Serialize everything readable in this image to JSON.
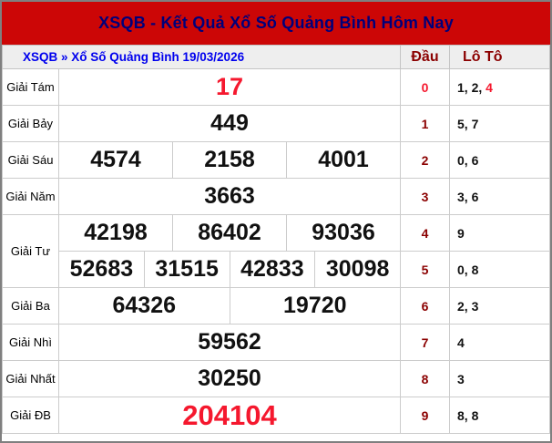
{
  "header": {
    "title": "XSQB - Kết Quả Xổ Số Quảng Bình Hôm Nay"
  },
  "subheader": {
    "breadcrumb": "XSQB » Xổ Số Quảng Bình 19/03/2026",
    "dau_header": "Đầu",
    "loto_header": "Lô Tô"
  },
  "colors": {
    "header_bar": "#cc0606",
    "title_text": "#00007a",
    "link_blue": "#0000EE",
    "dark_red": "#8B0000",
    "highlight_red": "#f5182e",
    "header_row_bg": "#eeeeee",
    "cell_border": "#cccccc"
  },
  "rows": [
    {
      "label": "Giải Tám",
      "lines": [
        {
          "numbers": [
            "17"
          ],
          "dau": "0",
          "loto_black": "1, 2, ",
          "loto_red": "4"
        }
      ]
    },
    {
      "label": "Giải Bảy",
      "lines": [
        {
          "numbers": [
            "449"
          ],
          "dau": "1",
          "loto_black": "5, 7",
          "loto_red": ""
        }
      ]
    },
    {
      "label": "Giải Sáu",
      "lines": [
        {
          "numbers": [
            "4574",
            "2158",
            "4001"
          ],
          "dau": "2",
          "loto_black": "0, 6",
          "loto_red": ""
        }
      ]
    },
    {
      "label": "Giải Năm",
      "lines": [
        {
          "numbers": [
            "3663"
          ],
          "dau": "3",
          "loto_black": "3, 6",
          "loto_red": ""
        }
      ]
    },
    {
      "label": "Giải Tư",
      "lines": [
        {
          "numbers": [
            "42198",
            "86402",
            "93036"
          ],
          "dau": "4",
          "loto_black": "9",
          "loto_red": ""
        },
        {
          "numbers": [
            "52683",
            "31515",
            "42833",
            "30098"
          ],
          "dau": "5",
          "loto_black": "0, 8",
          "loto_red": ""
        }
      ]
    },
    {
      "label": "Giải Ba",
      "lines": [
        {
          "numbers": [
            "64326",
            "19720"
          ],
          "dau": "6",
          "loto_black": "2, 3",
          "loto_red": ""
        }
      ]
    },
    {
      "label": "Giải Nhì",
      "lines": [
        {
          "numbers": [
            "59562"
          ],
          "dau": "7",
          "loto_black": "4",
          "loto_red": ""
        }
      ]
    },
    {
      "label": "Giải Nhất",
      "lines": [
        {
          "numbers": [
            "30250"
          ],
          "dau": "8",
          "loto_black": "3",
          "loto_red": ""
        }
      ]
    },
    {
      "label": "Giải ĐB",
      "lines": [
        {
          "numbers": [
            "204104"
          ],
          "dau": "9",
          "loto_black": "8, 8",
          "loto_red": ""
        }
      ]
    }
  ]
}
